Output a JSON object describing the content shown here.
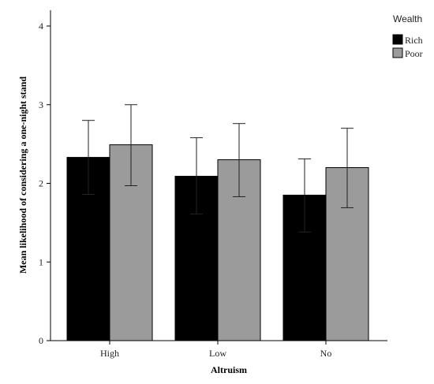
{
  "chart_data": {
    "type": "bar",
    "title": "",
    "xlabel": "Altruism",
    "ylabel": "Mean likelihood of considering a one-night stand",
    "categories": [
      "High",
      "Low",
      "No"
    ],
    "ylim": [
      0,
      4
    ],
    "yticks": [
      "0",
      "1",
      "2",
      "3",
      "4"
    ],
    "legend_title": "Wealth",
    "legend_position": "top-right",
    "grid": false,
    "series": [
      {
        "name": "Rich",
        "color": "#000000",
        "values": [
          2.33,
          2.09,
          1.85
        ],
        "error_low": [
          1.86,
          1.61,
          1.38
        ],
        "error_high": [
          2.8,
          2.58,
          2.31
        ]
      },
      {
        "name": "Poor",
        "color": "#9b9b9b",
        "values": [
          2.49,
          2.3,
          2.2
        ],
        "error_low": [
          1.97,
          1.83,
          1.69
        ],
        "error_high": [
          3.0,
          2.76,
          2.7
        ]
      }
    ]
  }
}
